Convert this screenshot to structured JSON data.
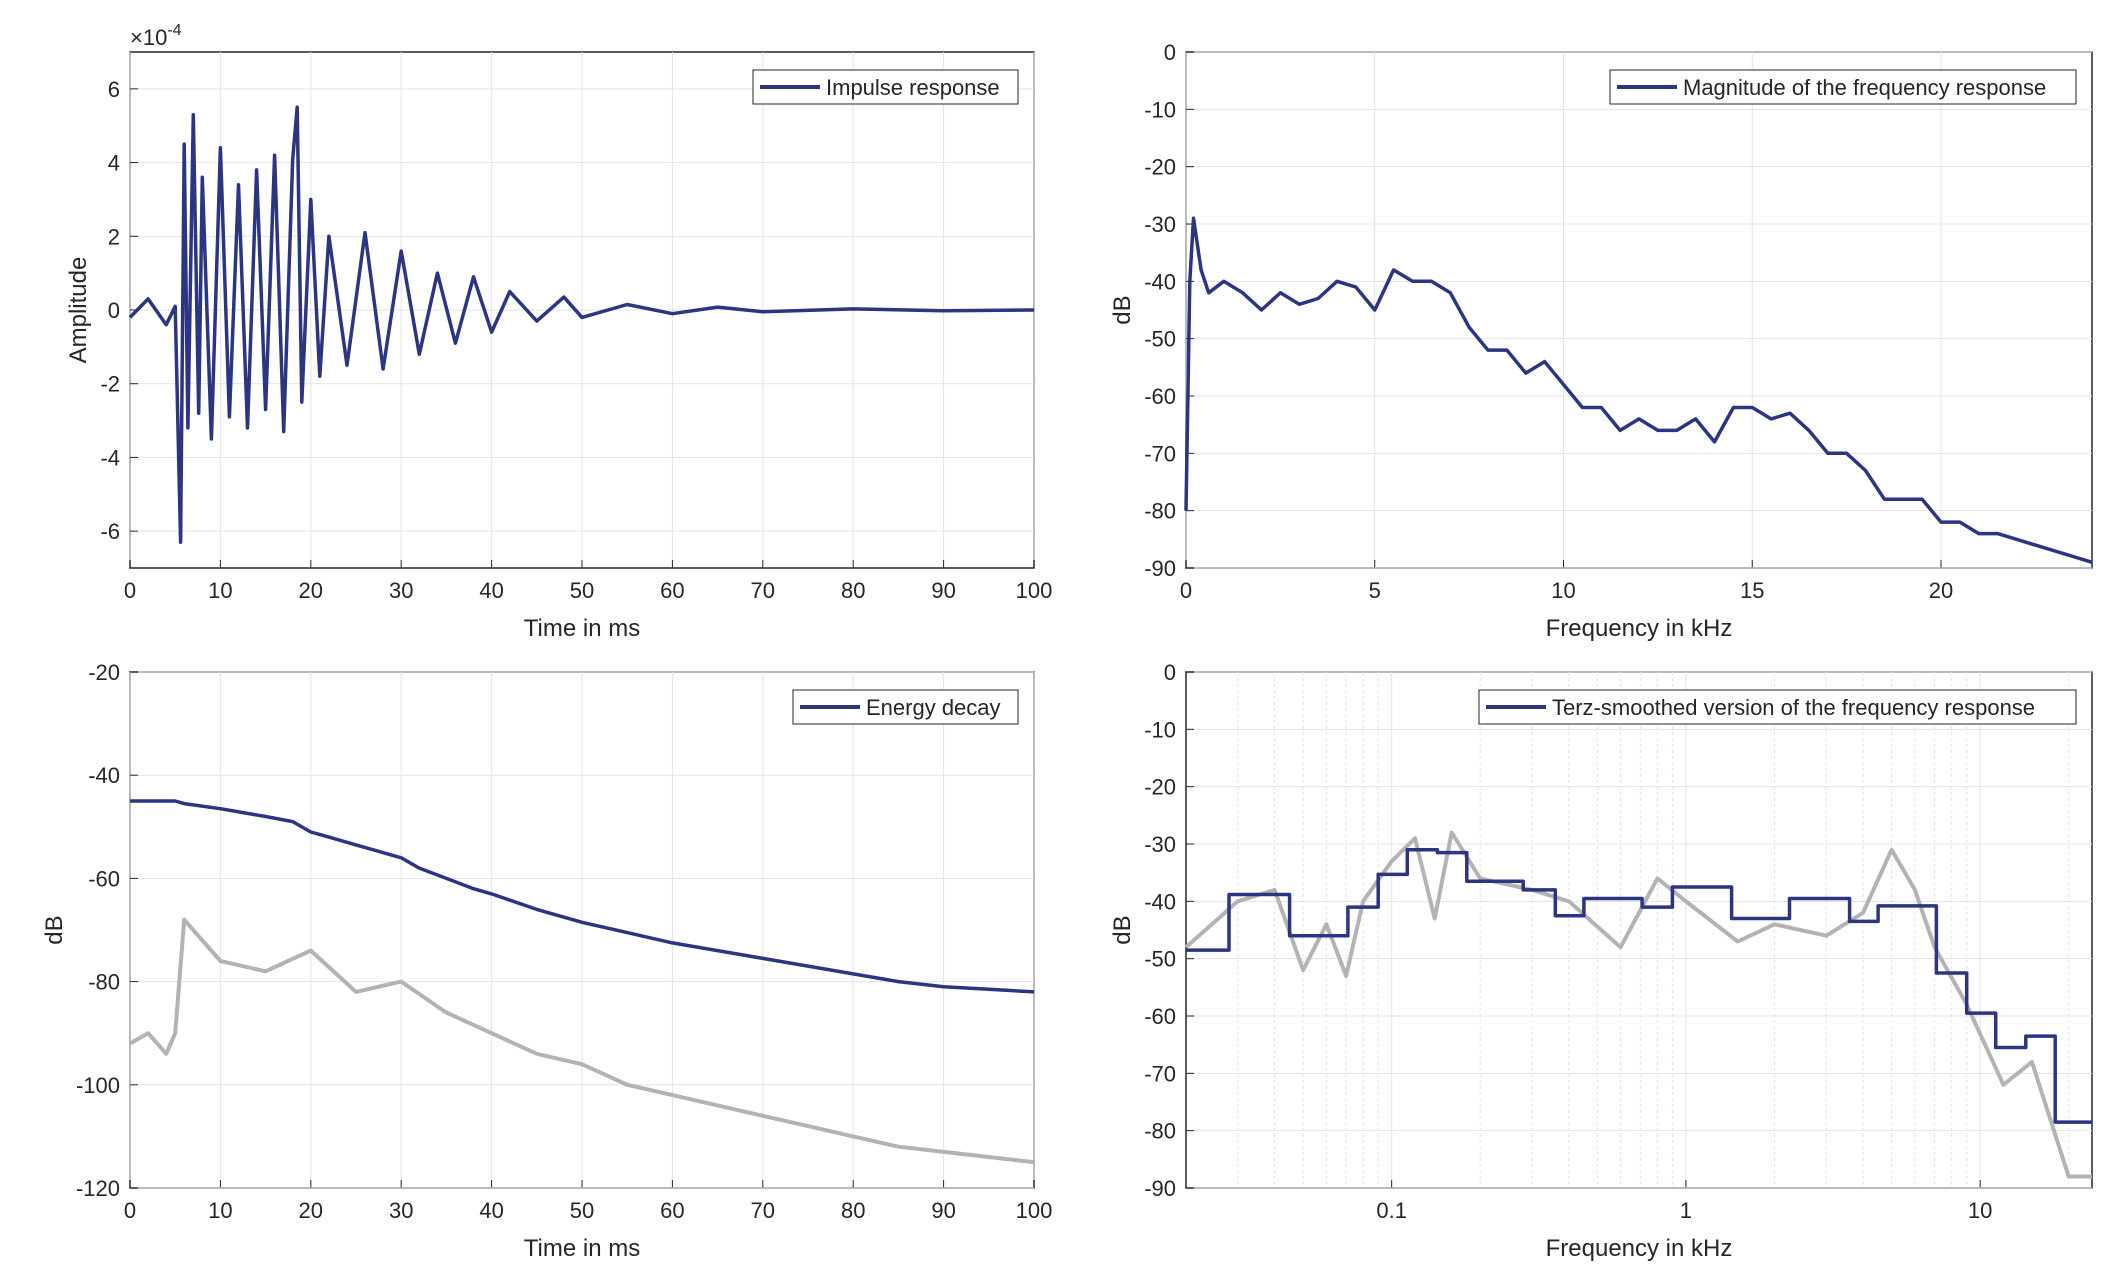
{
  "colors": {
    "series_primary": "#2b3582",
    "series_background": "#b3b3b3",
    "grid": "#e3e3e3",
    "axis": "#262626"
  },
  "chart_data": [
    {
      "id": "impulse",
      "type": "line",
      "xlabel": "Time in ms",
      "ylabel": "Amplitude",
      "exponent_label": "×10",
      "exponent_value": "-4",
      "xlim": [
        0,
        100
      ],
      "ylim": [
        -7,
        7
      ],
      "xticks": [
        0,
        10,
        20,
        30,
        40,
        50,
        60,
        70,
        80,
        90,
        100
      ],
      "yticks": [
        -6,
        -4,
        -2,
        0,
        2,
        4,
        6
      ],
      "xscale": "linear",
      "grid": true,
      "legend_position": "top-right",
      "series": [
        {
          "name": "Impulse response",
          "role": "primary",
          "x": [
            0,
            2,
            4,
            5,
            5.6,
            6,
            6.4,
            7,
            7.6,
            8,
            9,
            10,
            11,
            12,
            13,
            14,
            15,
            16,
            17,
            18,
            18.5,
            19,
            20,
            21,
            22,
            24,
            26,
            28,
            30,
            32,
            34,
            36,
            38,
            40,
            42,
            45,
            48,
            50,
            55,
            60,
            65,
            70,
            80,
            90,
            100
          ],
          "values": [
            -0.2,
            0.3,
            -0.4,
            0.1,
            -6.3,
            4.5,
            -3.2,
            5.3,
            -2.8,
            3.6,
            -3.5,
            4.4,
            -2.9,
            3.4,
            -3.2,
            3.8,
            -2.7,
            4.2,
            -3.3,
            4.1,
            5.5,
            -2.5,
            3.0,
            -1.8,
            2.0,
            -1.5,
            2.1,
            -1.6,
            1.6,
            -1.2,
            1.0,
            -0.9,
            0.9,
            -0.6,
            0.5,
            -0.3,
            0.35,
            -0.2,
            0.15,
            -0.1,
            0.08,
            -0.05,
            0.03,
            -0.02,
            0.0
          ]
        }
      ]
    },
    {
      "id": "magnitude",
      "type": "line",
      "xlabel": "Frequency in kHz",
      "ylabel": "dB",
      "xlim": [
        0,
        24
      ],
      "ylim": [
        -90,
        0
      ],
      "xticks": [
        0,
        5,
        10,
        15,
        20
      ],
      "yticks": [
        0,
        -10,
        -20,
        -30,
        -40,
        -50,
        -60,
        -70,
        -80,
        -90
      ],
      "xscale": "linear",
      "grid": true,
      "legend_position": "top-right",
      "series": [
        {
          "name": "Magnitude of the frequency response",
          "role": "primary",
          "x": [
            0,
            0.1,
            0.2,
            0.4,
            0.6,
            1,
            1.5,
            2,
            2.5,
            3,
            3.5,
            4,
            4.5,
            5,
            5.5,
            6,
            6.5,
            7,
            7.5,
            8,
            8.5,
            9,
            9.5,
            10,
            10.5,
            11,
            11.5,
            12,
            12.5,
            13,
            13.5,
            14,
            14.5,
            15,
            15.5,
            16,
            16.5,
            17,
            17.5,
            18,
            18.5,
            19,
            19.5,
            20,
            20.5,
            21,
            21.5,
            22,
            22.5,
            23,
            23.5,
            24
          ],
          "values": [
            -80,
            -40,
            -29,
            -38,
            -42,
            -40,
            -42,
            -45,
            -42,
            -44,
            -43,
            -40,
            -41,
            -45,
            -38,
            -40,
            -40,
            -42,
            -48,
            -52,
            -52,
            -56,
            -54,
            -58,
            -62,
            -62,
            -66,
            -64,
            -66,
            -66,
            -64,
            -68,
            -62,
            -62,
            -64,
            -63,
            -66,
            -70,
            -70,
            -73,
            -78,
            -78,
            -78,
            -82,
            -82,
            -84,
            -84,
            -85,
            -86,
            -87,
            -88,
            -89
          ]
        }
      ]
    },
    {
      "id": "energy-decay",
      "type": "line",
      "xlabel": "Time in ms",
      "ylabel": "dB",
      "xlim": [
        0,
        100
      ],
      "ylim": [
        -120,
        -20
      ],
      "xticks": [
        0,
        10,
        20,
        30,
        40,
        50,
        60,
        70,
        80,
        90,
        100
      ],
      "yticks": [
        -20,
        -40,
        -60,
        -80,
        -100,
        -120
      ],
      "xscale": "linear",
      "grid": true,
      "legend_position": "top-right",
      "series": [
        {
          "name": "Energy decay",
          "role": "primary",
          "x": [
            0,
            2,
            4,
            5,
            6,
            10,
            15,
            18,
            20,
            22,
            25,
            30,
            32,
            35,
            38,
            40,
            45,
            50,
            55,
            60,
            65,
            70,
            75,
            80,
            85,
            90,
            95,
            100
          ],
          "values": [
            -45,
            -45,
            -45,
            -45,
            -45.5,
            -46.5,
            -48,
            -49,
            -51,
            -52,
            -53.5,
            -56,
            -58,
            -60,
            -62,
            -63,
            -66,
            -68.5,
            -70.5,
            -72.5,
            -74,
            -75.5,
            -77,
            -78.5,
            -80,
            -81,
            -81.5,
            -82
          ]
        },
        {
          "role": "background",
          "x": [
            0,
            2,
            4,
            5,
            6,
            10,
            15,
            20,
            25,
            30,
            35,
            40,
            45,
            50,
            55,
            60,
            65,
            70,
            75,
            80,
            85,
            90,
            95,
            100
          ],
          "values": [
            -92,
            -90,
            -94,
            -90,
            -68,
            -76,
            -78,
            -74,
            -82,
            -80,
            -86,
            -90,
            -94,
            -96,
            -100,
            -102,
            -104,
            -106,
            -108,
            -110,
            -112,
            -113,
            -114,
            -115
          ]
        }
      ]
    },
    {
      "id": "terz",
      "type": "line",
      "xlabel": "Frequency in kHz",
      "ylabel": "dB",
      "xlim": [
        0.02,
        24
      ],
      "ylim": [
        -90,
        0
      ],
      "xticks": [
        0.1,
        1,
        10
      ],
      "xticklabels": [
        "0.1",
        "1",
        "10"
      ],
      "yticks": [
        0,
        -10,
        -20,
        -30,
        -40,
        -50,
        -60,
        -70,
        -80,
        -90
      ],
      "xscale": "log",
      "grid": true,
      "legend_position": "top-right",
      "series": [
        {
          "name": "Terz-smoothed version of the frequency response",
          "role": "primary",
          "step": true,
          "x": [
            0.02,
            0.028,
            0.045,
            0.071,
            0.09,
            0.113,
            0.143,
            0.18,
            0.28,
            0.36,
            0.45,
            0.71,
            0.9,
            1.43,
            2.25,
            3.6,
            4.5,
            7.1,
            9,
            11.3,
            14.3,
            18,
            24
          ],
          "values": [
            -48.5,
            -38.8,
            -46,
            -41,
            -35.3,
            -31,
            -31.5,
            -36.5,
            -38,
            -42.5,
            -39.5,
            -41,
            -37.5,
            -43,
            -39.5,
            -43.5,
            -40.8,
            -52.5,
            -59.5,
            -65.5,
            -63.5,
            -78.5,
            -78.5
          ]
        },
        {
          "role": "background",
          "x": [
            0.02,
            0.03,
            0.04,
            0.05,
            0.06,
            0.07,
            0.08,
            0.1,
            0.12,
            0.14,
            0.16,
            0.2,
            0.3,
            0.4,
            0.6,
            0.8,
            1,
            1.5,
            2,
            3,
            4,
            5,
            6,
            7,
            9,
            12,
            15,
            20,
            24
          ],
          "values": [
            -48,
            -40,
            -38,
            -52,
            -44,
            -53,
            -40,
            -33,
            -29,
            -43,
            -28,
            -36,
            -38,
            -40,
            -48,
            -36,
            -40,
            -47,
            -44,
            -46,
            -42,
            -31,
            -38,
            -48,
            -58,
            -72,
            -68,
            -88,
            -88
          ]
        }
      ]
    }
  ]
}
